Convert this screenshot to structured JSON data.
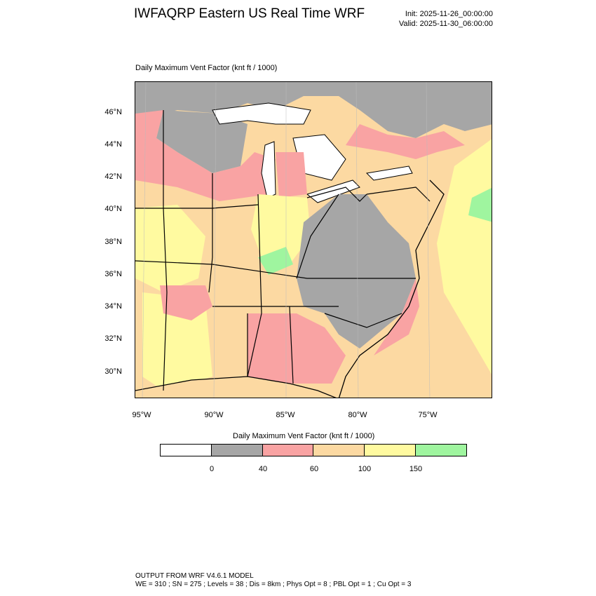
{
  "header": {
    "title": "IWFAQRP Eastern US Real Time WRF",
    "init": "Init: 2025-11-26_00:00:00",
    "valid": "Valid: 2025-11-30_06:00:00"
  },
  "map": {
    "subtitle": "Daily Maximum Vent Factor   (knt ft / 1000)",
    "lat_ticks": [
      "46°N",
      "44°N",
      "42°N",
      "40°N",
      "38°N",
      "36°N",
      "34°N",
      "32°N",
      "30°N"
    ],
    "lon_ticks": [
      "95°W",
      "90°W",
      "85°W",
      "80°W",
      "75°W"
    ],
    "colors": {
      "ocean_background": "#fcd9a2",
      "gray_0_40": "#a6a6a6",
      "red_40_60": "#f9a3a3",
      "orange_60_100": "#fcd9a2",
      "yellow_100_150": "#fffaa0",
      "green_150_plus": "#9ff59f"
    }
  },
  "colorbar": {
    "title": "Daily Maximum Vent Factor  (knt ft / 1000)",
    "colors": [
      "#ffffff",
      "#a6a6a6",
      "#f9a3a3",
      "#fcd9a2",
      "#fffaa0",
      "#9ff59f"
    ],
    "labels": [
      "0",
      "40",
      "60",
      "100",
      "150"
    ]
  },
  "footer": {
    "line1": "OUTPUT FROM WRF V4.6.1 MODEL",
    "line2": "WE = 310 ; SN = 275 ; Levels = 38 ; Dis = 8km ; Phys Opt = 8 ; PBL Opt = 1 ; Cu Opt = 3"
  }
}
